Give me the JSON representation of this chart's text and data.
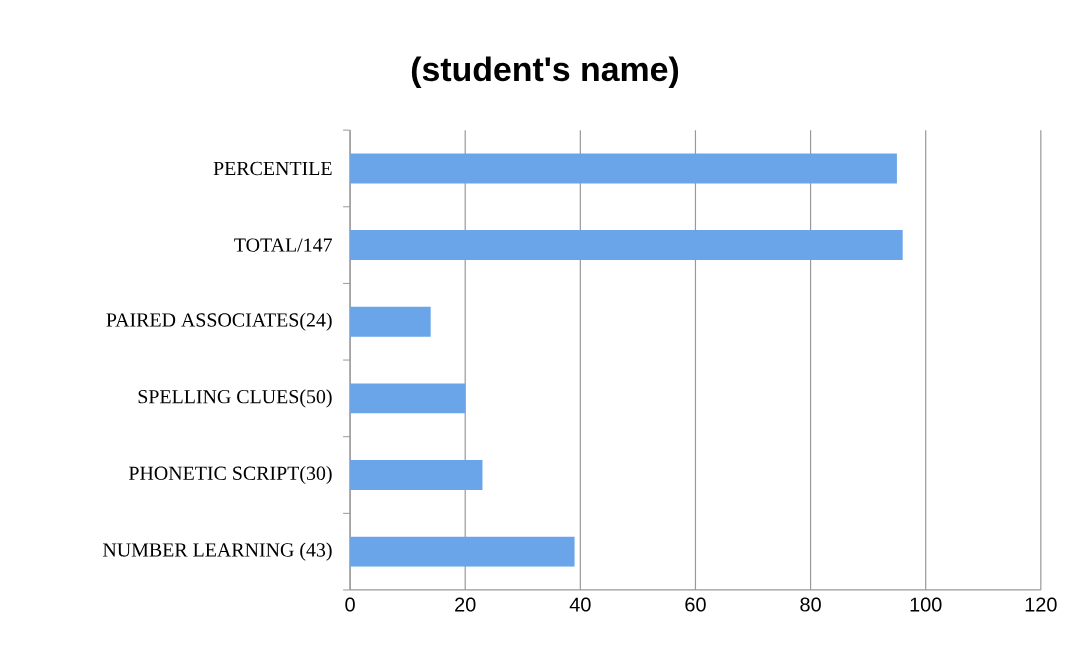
{
  "chart_data": {
    "type": "bar",
    "orientation": "horizontal",
    "title": "(student's name)",
    "categories": [
      "PERCENTILE",
      "TOTAL/147",
      "PAIRED ASSOCIATES(24)",
      "SPELLING CLUES(50)",
      "PHONETIC SCRIPT(30)",
      "NUMBER LEARNING (43)"
    ],
    "values": [
      95,
      96,
      14,
      20,
      23,
      39
    ],
    "color": "#6aa5ea",
    "xlim": [
      0,
      120
    ],
    "xticks": [
      0,
      20,
      40,
      60,
      80,
      100,
      120
    ],
    "grid": "x"
  }
}
